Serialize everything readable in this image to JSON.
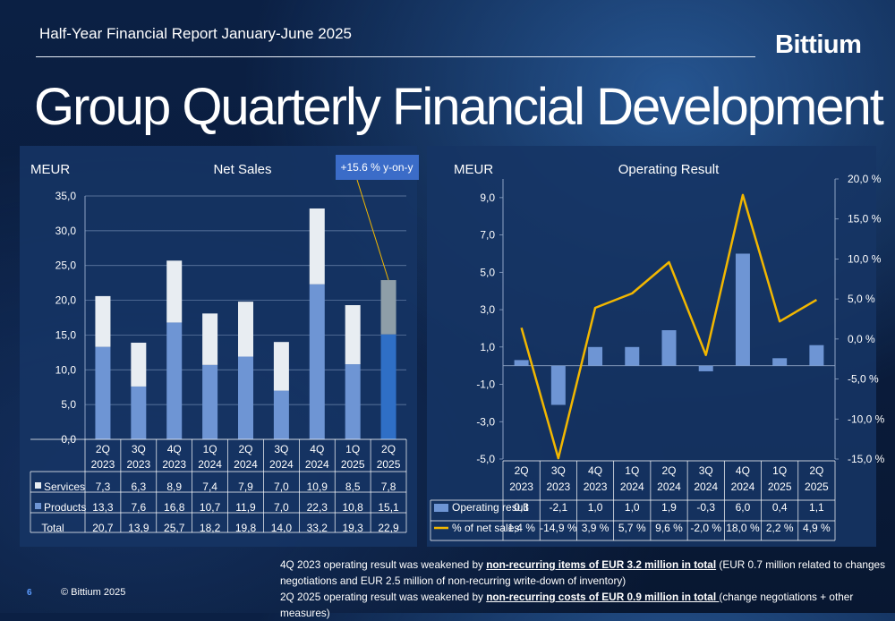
{
  "header": {
    "title": "Half-Year Financial Report January-June 2025",
    "logo": "Bittium"
  },
  "page_title": "Group Quarterly Financial Development",
  "footer": {
    "page_number": "6",
    "copyright": "© Bittium 2025"
  },
  "notes": [
    {
      "before": "4Q 2023 operating result was weakened by ",
      "bold": "non-recurring items of EUR 3.2 million in total",
      "after": " (EUR 0.7 million related to changes negotiations and EUR 2.5 million of non-recurring write-down of inventory)"
    },
    {
      "before": "2Q 2025 operating result was weakened by ",
      "bold": "non-recurring costs of EUR 0.9 million in total ",
      "after": "(change negotiations + other measures)"
    }
  ],
  "colors": {
    "products": "#6e95d4",
    "services": "#e8edf2",
    "services_latest": "#8e9ea8",
    "products_latest": "#2f6fc6",
    "line": "#f2b700",
    "callout": "#3b6cc8"
  },
  "chart_data": [
    {
      "type": "bar",
      "stacked": true,
      "title": "Net Sales",
      "ylabel": "MEUR",
      "ylim": [
        0,
        35
      ],
      "yticks": [
        "0,0",
        "5,0",
        "10,0",
        "15,0",
        "20,0",
        "25,0",
        "30,0",
        "35,0"
      ],
      "categories": [
        [
          "2Q",
          "2023"
        ],
        [
          "3Q",
          "2023"
        ],
        [
          "4Q",
          "2023"
        ],
        [
          "1Q",
          "2024"
        ],
        [
          "2Q",
          "2024"
        ],
        [
          "3Q",
          "2024"
        ],
        [
          "4Q",
          "2024"
        ],
        [
          "1Q",
          "2025"
        ],
        [
          "2Q",
          "2025"
        ]
      ],
      "series": [
        {
          "name": "Products",
          "values": [
            13.3,
            7.6,
            16.8,
            10.7,
            11.9,
            7.0,
            22.3,
            10.8,
            15.1
          ],
          "labels": [
            "13,3",
            "7,6",
            "16,8",
            "10,7",
            "11,9",
            "7,0",
            "22,3",
            "10,8",
            "15,1"
          ]
        },
        {
          "name": "Services",
          "values": [
            7.3,
            6.3,
            8.9,
            7.4,
            7.9,
            7.0,
            10.9,
            8.5,
            7.8
          ],
          "labels": [
            "7,3",
            "6,3",
            "8,9",
            "7,4",
            "7,9",
            "7,0",
            "10,9",
            "8,5",
            "7,8"
          ]
        }
      ],
      "total": {
        "name": "Total",
        "labels": [
          "20,7",
          "13,9",
          "25,7",
          "18,2",
          "19,8",
          "14,0",
          "33,2",
          "19,3",
          "22,9"
        ]
      },
      "callout": "+15.6 % y-on-y",
      "grid": true
    },
    {
      "type": "bar+line",
      "title": "Operating Result",
      "ylabel": "MEUR",
      "ylim": [
        -5,
        10
      ],
      "yticks": [
        "-5,0",
        "-3,0",
        "-1,0",
        "1,0",
        "3,0",
        "5,0",
        "7,0",
        "9,0"
      ],
      "y2lim": [
        -15,
        20
      ],
      "y2ticks": [
        "-15,0 %",
        "-10,0 %",
        "-5,0 %",
        "0,0 %",
        "5,0 %",
        "10,0 %",
        "15,0 %",
        "20,0 %"
      ],
      "categories": [
        [
          "2Q",
          "2023"
        ],
        [
          "3Q",
          "2023"
        ],
        [
          "4Q",
          "2023"
        ],
        [
          "1Q",
          "2024"
        ],
        [
          "2Q",
          "2024"
        ],
        [
          "3Q",
          "2024"
        ],
        [
          "4Q",
          "2024"
        ],
        [
          "1Q",
          "2025"
        ],
        [
          "2Q",
          "2025"
        ]
      ],
      "series": [
        {
          "name": "Operating result",
          "type": "bar",
          "values": [
            0.3,
            -2.1,
            1.0,
            1.0,
            1.9,
            -0.3,
            6.0,
            0.4,
            1.1
          ],
          "labels": [
            "0,3",
            "-2,1",
            "1,0",
            "1,0",
            "1,9",
            "-0,3",
            "6,0",
            "0,4",
            "1,1"
          ]
        },
        {
          "name": "% of net sales",
          "type": "line",
          "axis": "right",
          "values": [
            1.4,
            -14.9,
            3.9,
            5.7,
            9.6,
            -2.0,
            18.0,
            2.2,
            4.9
          ],
          "labels": [
            "1,4 %",
            "-14,9 %",
            "3,9 %",
            "5,7 %",
            "9,6 %",
            "-2,0 %",
            "18,0 %",
            "2,2 %",
            "4,9 %"
          ]
        }
      ],
      "grid": false
    }
  ]
}
